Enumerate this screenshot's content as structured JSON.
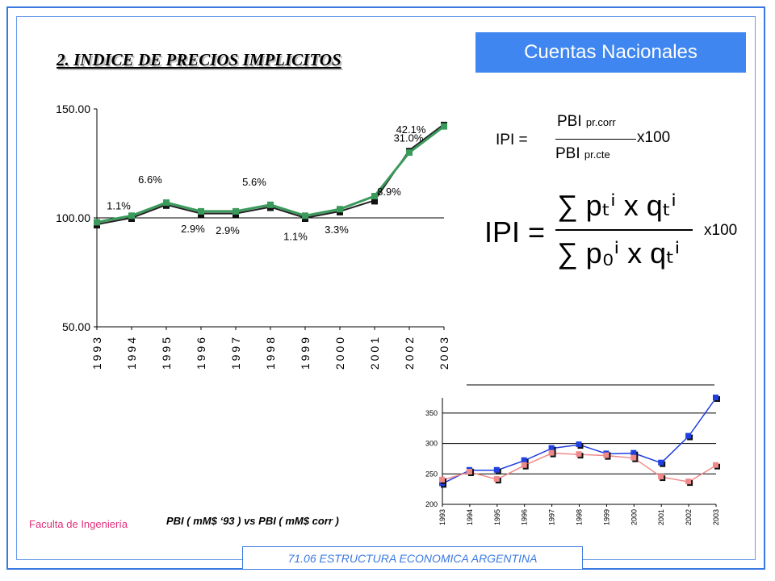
{
  "header": {
    "label": "Cuentas Nacionales"
  },
  "title": "2. INDICE DE PRECIOS IMPLICITOS",
  "formula1": {
    "lhs": "IPI =",
    "num": "PBI",
    "num_sub": "pr.corr",
    "den": "PBI",
    "den_sub": "pr.cte",
    "mult": "x100"
  },
  "formula2": {
    "lhs": "IPI =",
    "num": "∑ pₜⁱ x qₜⁱ",
    "den": "∑ p₀ⁱ x qₜⁱ",
    "mult": "x100"
  },
  "footer": {
    "faculty": "Faculta de Ingeniería",
    "course": "71.06 ESTRUCTURA ECONOMICA ARGENTINA",
    "chart2_caption": "PBI ( mM$ ‘93 ) vs PBI ( mM$ corr )"
  },
  "colors": {
    "accent": "#3f86f0",
    "ipi_line": "#3a9a5b",
    "pbi_corr": "#1f3fe0",
    "pbi_cte": "#f08a8a",
    "faculty_text": "#e0307a"
  },
  "chart_data": [
    {
      "type": "line",
      "categories": [
        "1993",
        "1994",
        "1995",
        "1996",
        "1997",
        "1998",
        "1999",
        "2000",
        "2001",
        "2002",
        "2003"
      ],
      "series": [
        {
          "values": [
            98,
            101,
            107,
            103,
            103,
            106,
            101,
            104,
            110,
            130,
            142
          ]
        },
        {
          "values": [
            97,
            100,
            106,
            102,
            102,
            105,
            100,
            103,
            108,
            131,
            143
          ]
        }
      ],
      "labels": [
        "1.1%",
        "6.6%",
        "2.9%",
        "2.9%",
        "5.6%",
        "1.1%",
        "3.3%",
        "8.9%",
        "42.1%",
        "31.0%"
      ],
      "ylim": [
        50,
        150
      ],
      "yticks": [
        "50.00",
        "100.00",
        "150.00"
      ],
      "grid": "y at 100"
    },
    {
      "type": "line",
      "categories": [
        "1993",
        "1994",
        "1995",
        "1996",
        "1997",
        "1998",
        "1999",
        "2000",
        "2001",
        "2002",
        "2003"
      ],
      "series": [
        {
          "values": [
            234,
            256,
            256,
            272,
            292,
            298,
            283,
            284,
            268,
            312,
            375
          ]
        },
        {
          "values": [
            240,
            253,
            241,
            264,
            284,
            282,
            280,
            276,
            245,
            237,
            264
          ]
        }
      ],
      "ylim": [
        200,
        375
      ],
      "yticks": [
        "200",
        "250",
        "300",
        "350"
      ],
      "grid": "horizontal"
    }
  ]
}
